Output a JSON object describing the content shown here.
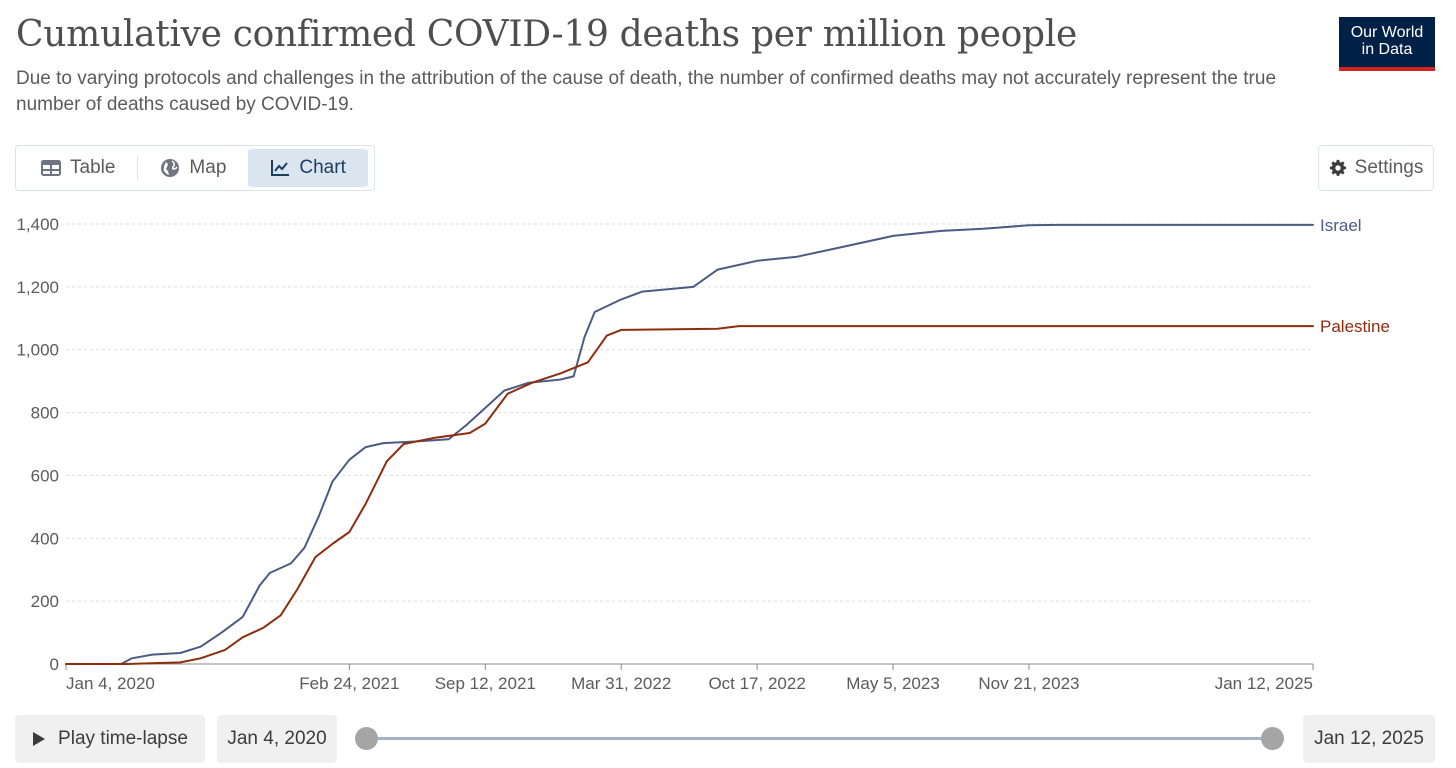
{
  "header": {
    "title": "Cumulative confirmed COVID-19 deaths per million people",
    "subtitle": "Due to varying protocols and challenges in the attribution of the cause of death, the number of confirmed deaths may not accurately represent the true number of deaths caused by COVID-19.",
    "logo_line1": "Our World",
    "logo_line2": "in Data"
  },
  "tabs": [
    {
      "label": "Table",
      "icon": "table-icon"
    },
    {
      "label": "Map",
      "icon": "globe-icon"
    },
    {
      "label": "Chart",
      "icon": "line-chart-icon",
      "active": true
    }
  ],
  "settings": {
    "label": "Settings",
    "icon": "gear-icon"
  },
  "timeline": {
    "play_label": "Play time-lapse",
    "start_date": "Jan 4, 2020",
    "end_date": "Jan 12, 2025"
  },
  "colors": {
    "israel": "#4c5b85",
    "palestine": "#8e2d0e",
    "grid": "#dddddd",
    "logo_bg": "#002147",
    "logo_accent": "#ce261e"
  },
  "chart_data": {
    "type": "line",
    "xlim": [
      "2020-01-04",
      "2025-01-12"
    ],
    "ylim": [
      0,
      1400
    ],
    "y_ticks": [
      0,
      200,
      400,
      600,
      800,
      1000,
      1200,
      1400
    ],
    "y_tick_labels": [
      "0",
      "200",
      "400",
      "600",
      "800",
      "1,000",
      "1,200",
      "1,400"
    ],
    "x_ticks": [
      "2020-01-04",
      "2021-02-24",
      "2021-09-12",
      "2022-03-31",
      "2022-10-17",
      "2023-05-05",
      "2023-11-21",
      "2025-01-12"
    ],
    "x_tick_labels": [
      "Jan 4, 2020",
      "Feb 24, 2021",
      "Sep 12, 2021",
      "Mar 31, 2022",
      "Oct 17, 2022",
      "May 5, 2023",
      "Nov 21, 2023",
      "Jan 12, 2025"
    ],
    "grid": "horizontal dashed",
    "legend": "inline labels at line ends",
    "series": [
      {
        "name": "Israel",
        "points": [
          [
            "2020-01-04",
            0
          ],
          [
            "2020-03-25",
            0
          ],
          [
            "2020-04-10",
            18
          ],
          [
            "2020-05-10",
            30
          ],
          [
            "2020-06-20",
            35
          ],
          [
            "2020-07-20",
            55
          ],
          [
            "2020-08-20",
            100
          ],
          [
            "2020-09-20",
            150
          ],
          [
            "2020-10-15",
            250
          ],
          [
            "2020-10-30",
            290
          ],
          [
            "2020-11-30",
            320
          ],
          [
            "2020-12-20",
            370
          ],
          [
            "2021-01-10",
            470
          ],
          [
            "2021-01-30",
            580
          ],
          [
            "2021-02-24",
            650
          ],
          [
            "2021-03-20",
            690
          ],
          [
            "2021-04-15",
            703
          ],
          [
            "2021-06-01",
            708
          ],
          [
            "2021-07-20",
            715
          ],
          [
            "2021-08-15",
            760
          ],
          [
            "2021-09-12",
            815
          ],
          [
            "2021-10-10",
            870
          ],
          [
            "2021-11-15",
            895
          ],
          [
            "2021-12-31",
            905
          ],
          [
            "2022-01-20",
            915
          ],
          [
            "2022-02-05",
            1040
          ],
          [
            "2022-02-20",
            1120
          ],
          [
            "2022-03-31",
            1160
          ],
          [
            "2022-05-01",
            1185
          ],
          [
            "2022-07-15",
            1200
          ],
          [
            "2022-08-20",
            1255
          ],
          [
            "2022-10-17",
            1283
          ],
          [
            "2022-12-15",
            1296
          ],
          [
            "2023-02-15",
            1325
          ],
          [
            "2023-05-05",
            1362
          ],
          [
            "2023-07-15",
            1378
          ],
          [
            "2023-09-15",
            1385
          ],
          [
            "2023-11-21",
            1396
          ],
          [
            "2024-01-01",
            1397
          ],
          [
            "2025-01-12",
            1397
          ]
        ]
      },
      {
        "name": "Palestine",
        "points": [
          [
            "2020-01-04",
            0
          ],
          [
            "2020-04-01",
            0
          ],
          [
            "2020-06-20",
            5
          ],
          [
            "2020-07-20",
            18
          ],
          [
            "2020-08-25",
            45
          ],
          [
            "2020-09-20",
            85
          ],
          [
            "2020-10-20",
            115
          ],
          [
            "2020-11-15",
            155
          ],
          [
            "2020-12-10",
            240
          ],
          [
            "2021-01-05",
            340
          ],
          [
            "2021-02-01",
            385
          ],
          [
            "2021-02-24",
            420
          ],
          [
            "2021-03-20",
            510
          ],
          [
            "2021-04-20",
            645
          ],
          [
            "2021-05-15",
            700
          ],
          [
            "2021-06-30",
            720
          ],
          [
            "2021-08-20",
            735
          ],
          [
            "2021-09-12",
            765
          ],
          [
            "2021-10-15",
            860
          ],
          [
            "2021-11-20",
            895
          ],
          [
            "2022-01-01",
            925
          ],
          [
            "2022-02-10",
            960
          ],
          [
            "2022-03-10",
            1045
          ],
          [
            "2022-03-31",
            1063
          ],
          [
            "2022-08-20",
            1067
          ],
          [
            "2022-09-20",
            1075
          ],
          [
            "2025-01-12",
            1075
          ]
        ]
      }
    ]
  }
}
